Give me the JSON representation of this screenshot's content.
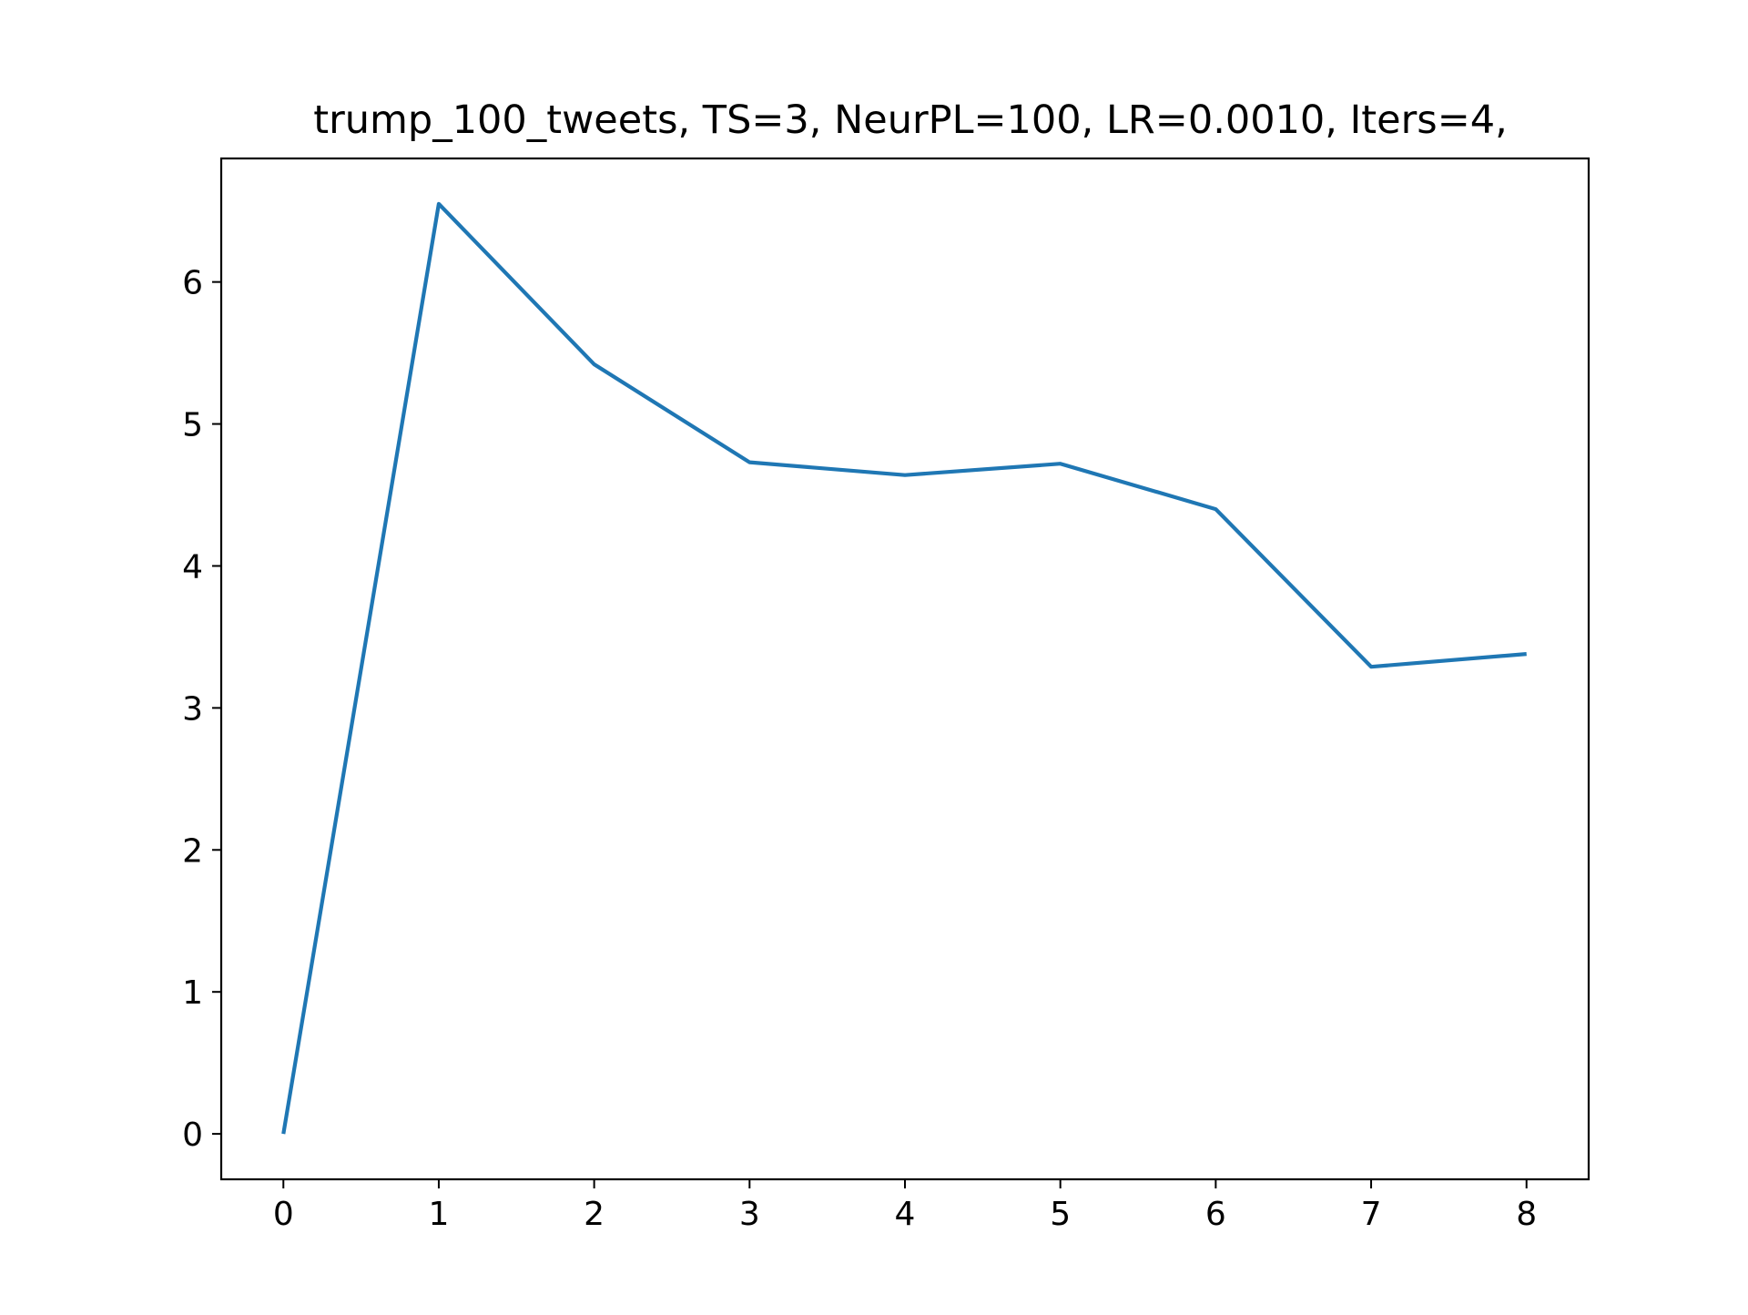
{
  "chart_data": {
    "type": "line",
    "title": "trump_100_tweets, TS=3, NeurPL=100, LR=0.0010, Iters=4,",
    "xlabel": "",
    "ylabel": "",
    "x": [
      0,
      1,
      2,
      3,
      4,
      5,
      6,
      7,
      8
    ],
    "series": [
      {
        "values": [
          0,
          6.55,
          5.42,
          4.73,
          4.64,
          4.72,
          4.4,
          3.29,
          3.38
        ],
        "color": "#1f77b4"
      }
    ],
    "xlim": [
      -0.4,
      8.4
    ],
    "ylim": [
      -0.32,
      6.87
    ],
    "xticks": [
      "0",
      "1",
      "2",
      "3",
      "4",
      "5",
      "6",
      "7",
      "8"
    ],
    "yticks": [
      "0",
      "1",
      "2",
      "3",
      "4",
      "5",
      "6"
    ],
    "grid": false,
    "legend": "none"
  }
}
